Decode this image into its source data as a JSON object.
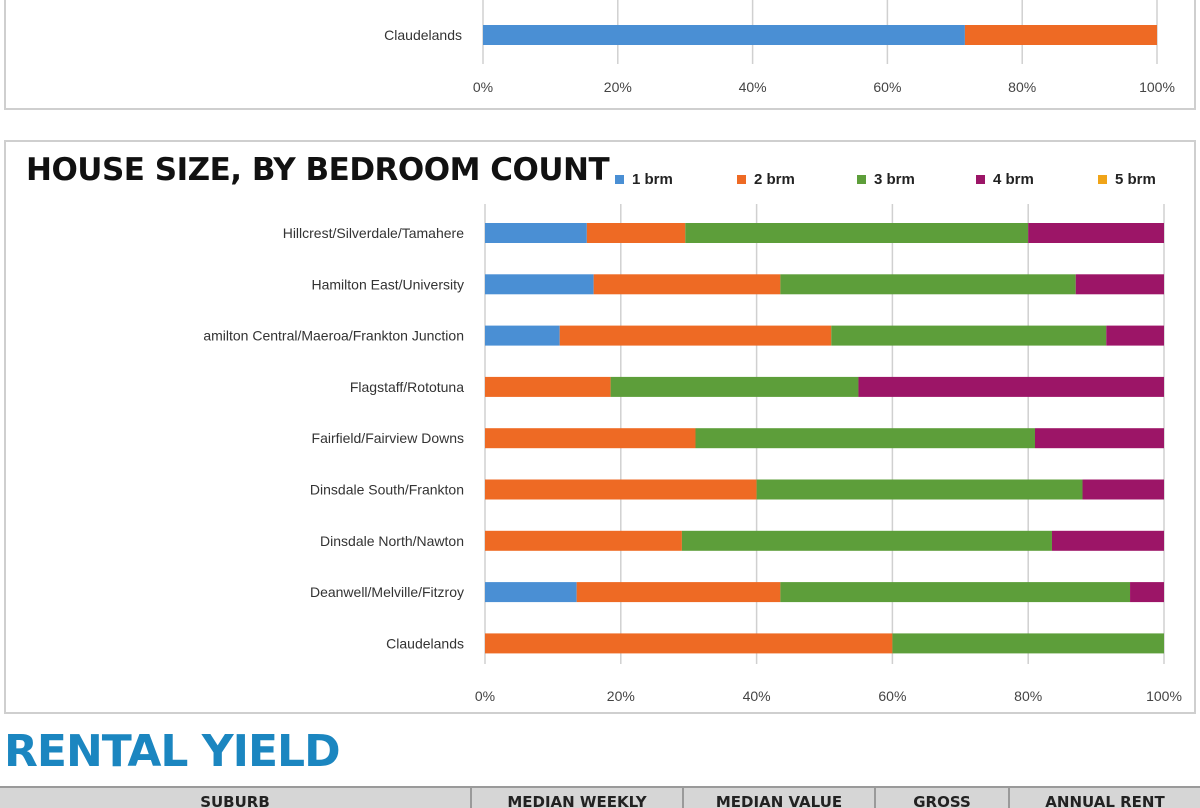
{
  "chart_data": [
    {
      "type": "bar",
      "orientation": "horizontal",
      "stacked": true,
      "percent": true,
      "title": "",
      "categories": [
        "Claudelands"
      ],
      "series": [
        {
          "values": [
            71.5
          ],
          "color": "#4a8fd4"
        },
        {
          "values": [
            28.5
          ],
          "color": "#ee6a24"
        }
      ],
      "xlim": [
        0,
        100
      ],
      "x_ticks": [
        "0%",
        "20%",
        "40%",
        "60%",
        "80%",
        "100%"
      ],
      "grid": true
    },
    {
      "type": "bar",
      "orientation": "horizontal",
      "stacked": true,
      "percent": true,
      "title": "HOUSE SIZE, BY BEDROOM COUNT",
      "legend_position": "top-right",
      "categories": [
        "Hillcrest/Silverdale/Tamahere",
        "Hamilton East/University",
        "amilton Central/Maeroa/Frankton Junction",
        "Flagstaff/Rototuna",
        "Fairfield/Fairview Downs",
        "Dinsdale South/Frankton",
        "Dinsdale North/Nawton",
        "Deanwell/Melville/Fitzroy",
        "Claudelands"
      ],
      "series": [
        {
          "name": "1 brm",
          "color": "#4a8fd4",
          "values": [
            15,
            16,
            11,
            0,
            0,
            0,
            0,
            13.5,
            0
          ]
        },
        {
          "name": "2 brm",
          "color": "#ee6a24",
          "values": [
            14.5,
            27.5,
            40,
            18.5,
            31,
            40,
            29,
            30,
            60
          ]
        },
        {
          "name": "3 brm",
          "color": "#5d9e3a",
          "values": [
            50.5,
            43.5,
            40.5,
            36.5,
            50,
            48,
            54.5,
            51.5,
            40
          ]
        },
        {
          "name": "4 brm",
          "color": "#9c1567",
          "values": [
            20,
            13,
            8.5,
            45,
            19,
            12,
            16.5,
            5,
            0
          ]
        },
        {
          "name": "5 brm",
          "color": "#f0a418",
          "values": [
            0,
            0,
            0,
            0,
            0,
            0,
            0,
            0,
            0
          ]
        }
      ],
      "xlim": [
        0,
        100
      ],
      "x_ticks": [
        "0%",
        "20%",
        "40%",
        "60%",
        "80%",
        "100%"
      ],
      "grid": true
    }
  ],
  "rental_yield": {
    "heading": "RENTAL YIELD",
    "columns": [
      "SUBURB",
      "MEDIAN WEEKLY",
      "MEDIAN VALUE",
      "GROSS",
      "ANNUAL RENT"
    ]
  }
}
